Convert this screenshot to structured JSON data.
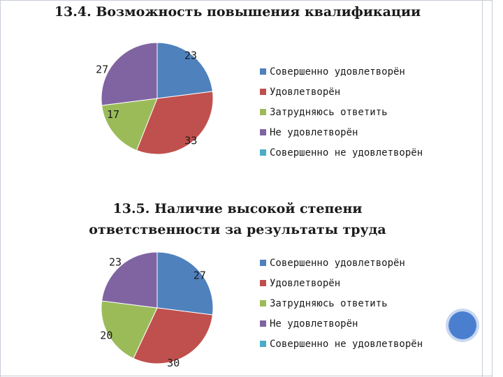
{
  "colors": {
    "blue": "#4F81BD",
    "red": "#C0504D",
    "green": "#9BBB59",
    "purple": "#8064A2",
    "cyan": "#4BACC6"
  },
  "chart_data": [
    {
      "type": "pie",
      "title": "13.4. Возможность повышения квалификации",
      "categories": [
        "Совершенно удовлетворён",
        "Удовлетворён",
        "Затрудняюсь ответить",
        "Не удовлетворён",
        "Совершенно не удовлетворён"
      ],
      "values": [
        23,
        33,
        17,
        27,
        0
      ],
      "legend": "right"
    },
    {
      "type": "pie",
      "title": "13.5. Наличие высокой степени ответственности за результаты труда",
      "title_lines": [
        "13.5. Наличие высокой степени",
        "ответственности за результаты труда"
      ],
      "categories": [
        "Совершенно удовлетворён",
        "Удовлетворён",
        "Затрудняюсь ответить",
        "Не удовлетворён",
        "Совершенно не удовлетворён"
      ],
      "values": [
        27,
        30,
        20,
        23,
        0
      ],
      "legend": "right"
    }
  ]
}
